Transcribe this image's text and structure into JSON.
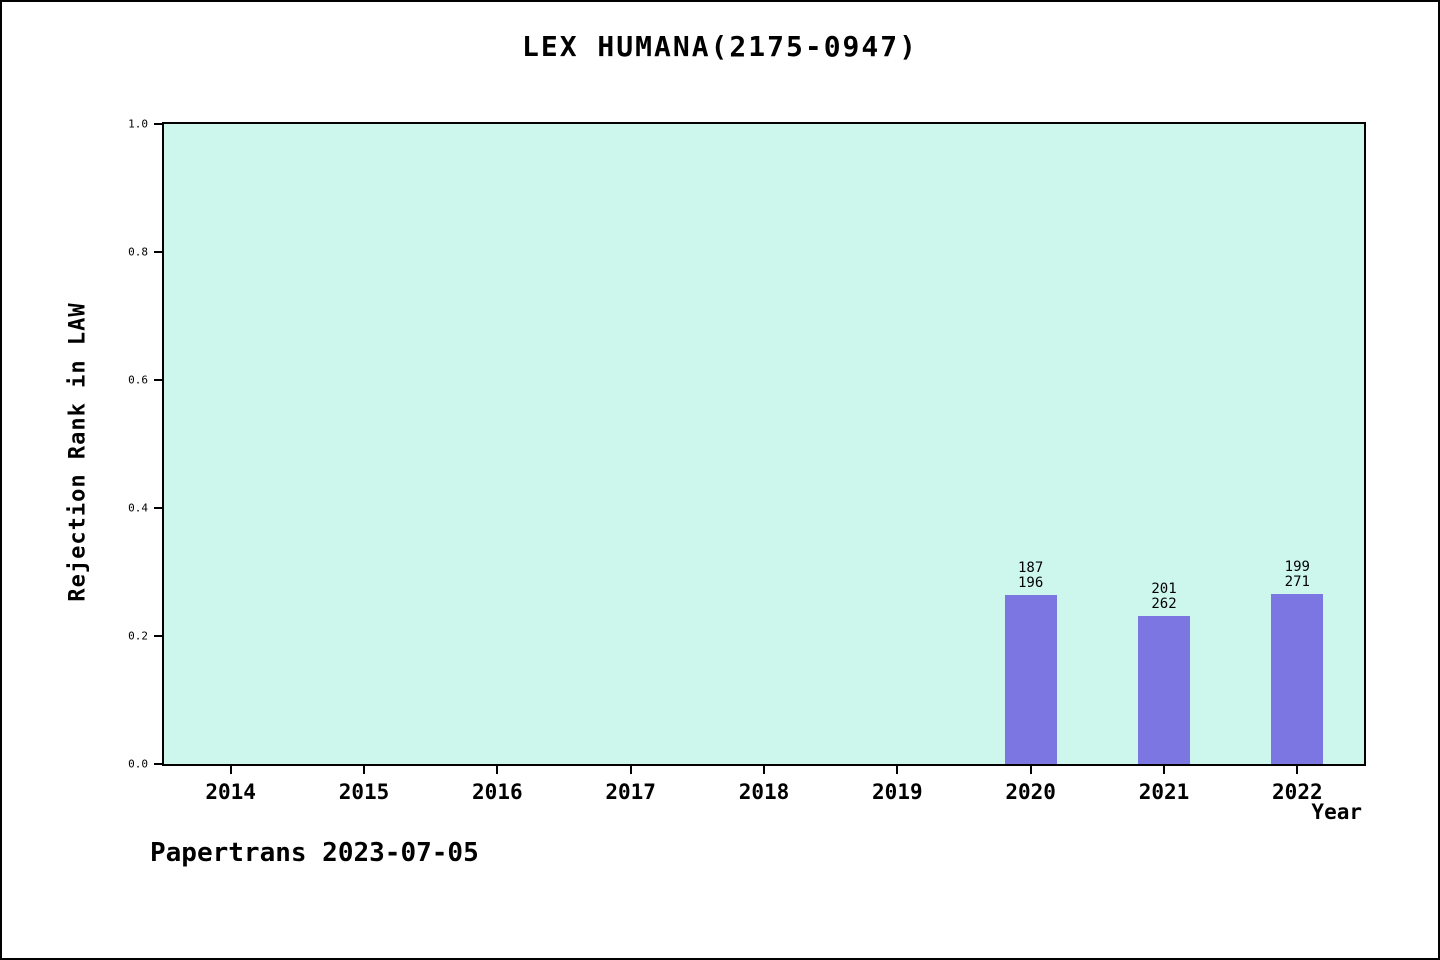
{
  "chart_data": {
    "type": "bar",
    "title": "LEX HUMANA(2175-0947)",
    "xlabel": "Year",
    "ylabel": "Rejection Rank in LAW",
    "ylim": [
      0.0,
      1.0
    ],
    "yticks": [
      0.0,
      0.2,
      0.4,
      0.6,
      0.8,
      1.0
    ],
    "categories": [
      "2014",
      "2015",
      "2016",
      "2017",
      "2018",
      "2019",
      "2020",
      "2021",
      "2022"
    ],
    "values": [
      null,
      null,
      null,
      null,
      null,
      null,
      0.264,
      0.232,
      0.265
    ],
    "bars": [
      {
        "category": "2020",
        "value": 0.264,
        "label_lines": [
          "187",
          "196"
        ]
      },
      {
        "category": "2021",
        "value": 0.232,
        "label_lines": [
          "201",
          "262"
        ]
      },
      {
        "category": "2022",
        "value": 0.265,
        "label_lines": [
          "199",
          "271"
        ]
      }
    ],
    "grid": false,
    "legend": null
  },
  "colors": {
    "plot_bg": "#CDF7EC",
    "bar_fill": "#7B76E1",
    "axis": "#000000"
  },
  "footer": {
    "text": "Papertrans 2023-07-05"
  }
}
